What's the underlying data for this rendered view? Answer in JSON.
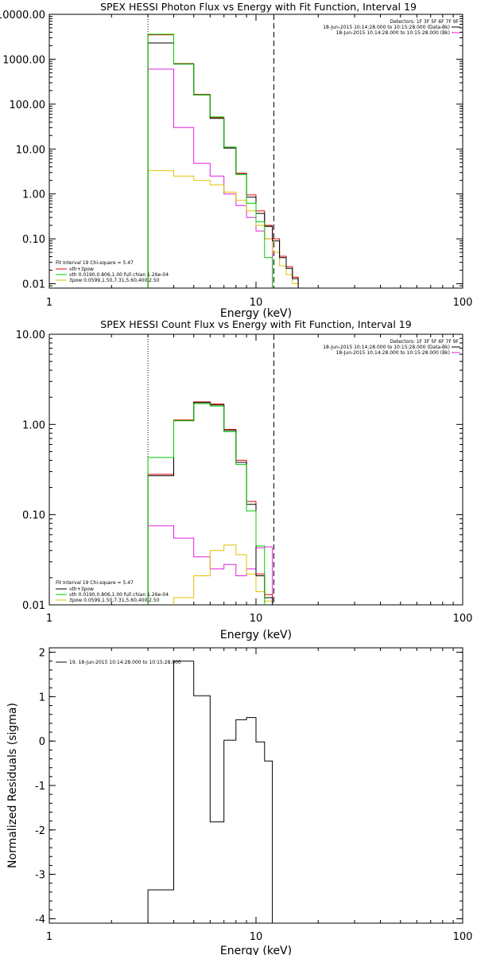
{
  "chart_data": [
    {
      "type": "line",
      "title": "SPEX HESSI Photon Flux vs Energy with Fit Function, Interval 19",
      "xlabel": "Energy (keV)",
      "ylabel": "",
      "xscale": "log",
      "yscale": "log",
      "xlim": [
        1,
        100
      ],
      "ylim": [
        0.008,
        10000
      ],
      "x_tick_labels": [
        "1",
        "10",
        "100"
      ],
      "y_tick_labels": [
        "0.01",
        "0.10",
        "1.00",
        "10.00",
        "100.00",
        "1000.00",
        "10000.00"
      ],
      "y_tick_values": [
        0.01,
        0.1,
        1,
        10,
        100,
        1000,
        10000
      ],
      "vlines": [
        {
          "x": 3,
          "style": "dotted"
        },
        {
          "x": 12.2,
          "style": "dashed"
        }
      ],
      "legend_topright": [
        "Detectors: 1F 3F 5F 6F 7F 9F",
        "18-Jun-2015 10:14:28.000 to 10:15:28.000 (Data-Bk)",
        "18-Jun-2015 10:14:28.000 to 10:15:28.000 (Bk)"
      ],
      "legend_topright_colors": [
        "#000000",
        "#e020e0"
      ],
      "legend_bottomleft": [
        "Fit Interval 19   Chi-square = 5.47",
        "vth+3pow",
        "vth 0.0190,0.806,1.00  full chian 1.26e-04",
        "3pow 0.0599,1.50,7.31,5.60,400,2.50"
      ],
      "legend_bottomleft_colors": [
        "#000000",
        "#e00000",
        "#00cc00",
        "#e0c000"
      ],
      "edges": [
        3,
        4,
        5,
        6,
        7,
        8,
        9,
        10,
        11,
        12,
        13,
        14,
        15,
        16
      ],
      "series": [
        {
          "color": "#e020e0",
          "values": [
            600,
            30,
            4.8,
            2.5,
            1.0,
            0.55,
            0.3,
            0.15,
            0.1
          ]
        },
        {
          "color": "#e0c000",
          "values": [
            3.3,
            2.5,
            2.0,
            1.6,
            1.1,
            0.72,
            0.42,
            0.2,
            0.1,
            0.05,
            0.025,
            0.016,
            0.01
          ]
        },
        {
          "color": "#e00000",
          "values": [
            3500,
            800,
            165,
            50,
            11,
            2.9,
            0.95,
            0.42,
            0.2,
            0.1,
            0.041,
            0.024,
            0.014
          ]
        },
        {
          "color": "#000000",
          "values": [
            2300,
            780,
            160,
            48,
            10.5,
            2.75,
            0.85,
            0.37,
            0.19,
            0.09,
            0.038,
            0.022,
            0.013
          ]
        },
        {
          "color": "#00cc00",
          "values": [
            3600,
            790,
            160,
            52,
            11,
            2.7,
            0.62,
            0.24,
            0.038,
            0.007
          ]
        }
      ]
    },
    {
      "type": "line",
      "title": "SPEX HESSI Count Flux vs Energy with Fit Function, Interval 19",
      "xlabel": "Energy (keV)",
      "ylabel": "",
      "xscale": "log",
      "yscale": "log",
      "xlim": [
        1,
        100
      ],
      "ylim": [
        0.01,
        10
      ],
      "x_tick_labels": [
        "1",
        "10",
        "100"
      ],
      "y_tick_labels": [
        "0.01",
        "0.10",
        "1.00",
        "10.00"
      ],
      "y_tick_values": [
        0.01,
        0.1,
        1,
        10
      ],
      "vlines": [
        {
          "x": 3,
          "style": "dotted"
        },
        {
          "x": 12.2,
          "style": "dashed"
        }
      ],
      "legend_topright": [
        "Detectors: 1F 3F 5F 6F 7F 9F",
        "18-Jun-2015 10:14:28.000 to 10:15:28.000 (Data-Bk)",
        "18-Jun-2015 10:14:28.000 to 10:15:28.000 (Bk)"
      ],
      "legend_topright_colors": [
        "#000000",
        "#e020e0"
      ],
      "legend_bottomleft": [
        "Fit Interval 19   Chi-square = 5.47",
        "vth+3pow",
        "vth 0.0190,0.806,1.00  full chian 1.26e-04",
        "3pow 0.0599,1.50,7.31,5.60,400,2.50"
      ],
      "legend_bottomleft_colors": [
        "#000000",
        "#000000",
        "#00cc00",
        "#e0c000"
      ],
      "edges": [
        3,
        4,
        5,
        6,
        7,
        8,
        9,
        10,
        11,
        12
      ],
      "series": [
        {
          "color": "#e020e0",
          "values": [
            0.075,
            0.055,
            0.034,
            0.025,
            0.028,
            0.021,
            0.025,
            0.043,
            0.044
          ]
        },
        {
          "color": "#e0c000",
          "values": [
            0.0072,
            0.012,
            0.021,
            0.04,
            0.046,
            0.036,
            0.022,
            0.014,
            0.011
          ]
        },
        {
          "color": "#e00000",
          "values": [
            0.28,
            1.12,
            1.78,
            1.68,
            0.88,
            0.4,
            0.14,
            0.022,
            0.013
          ]
        },
        {
          "color": "#000000",
          "values": [
            0.27,
            1.1,
            1.75,
            1.65,
            0.86,
            0.38,
            0.13,
            0.021,
            0.012
          ]
        },
        {
          "color": "#00cc00",
          "values": [
            0.43,
            1.1,
            1.7,
            1.6,
            0.83,
            0.36,
            0.11,
            0.045
          ]
        }
      ]
    },
    {
      "type": "line",
      "title": "",
      "xlabel": "Energy (keV)",
      "ylabel": "Normalized Residuals (sigma)",
      "xscale": "log",
      "yscale": "linear",
      "xlim": [
        1,
        100
      ],
      "ylim": [
        -4.1,
        2.1
      ],
      "x_tick_labels": [
        "1",
        "10",
        "100"
      ],
      "y_tick_labels": [
        "-4",
        "-3",
        "-2",
        "-1",
        "0",
        "1",
        "2"
      ],
      "y_tick_values": [
        -4,
        -3,
        -2,
        -1,
        0,
        1,
        2
      ],
      "legend": "19. 18-Jun-2015 10:14:28.000 to 10:15:28.000",
      "edges": [
        3,
        4,
        5,
        6,
        7,
        8,
        9,
        10,
        11,
        12
      ],
      "series": [
        {
          "color": "#000000",
          "values": [
            -3.35,
            1.8,
            1.02,
            -1.82,
            0.02,
            0.48,
            0.53,
            -0.02,
            -0.45
          ]
        }
      ]
    }
  ]
}
